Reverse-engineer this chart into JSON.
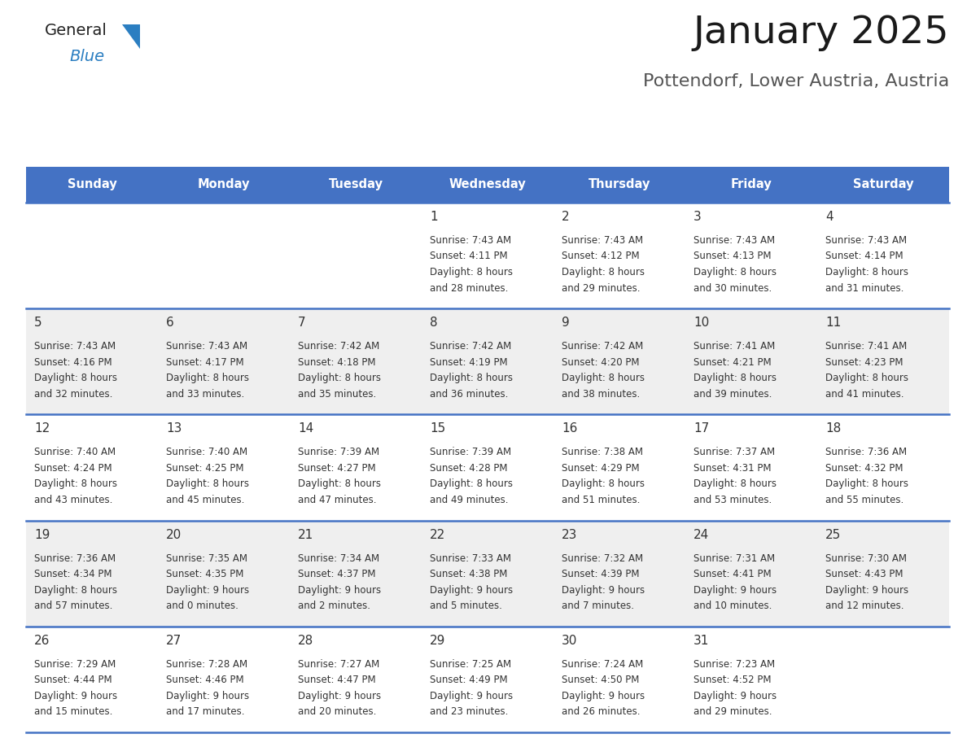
{
  "title": "January 2025",
  "subtitle": "Pottendorf, Lower Austria, Austria",
  "header_bg": "#4472C4",
  "header_text_color": "#FFFFFF",
  "day_names": [
    "Sunday",
    "Monday",
    "Tuesday",
    "Wednesday",
    "Thursday",
    "Friday",
    "Saturday"
  ],
  "cell_bg_even": "#FFFFFF",
  "cell_bg_odd": "#EFEFEF",
  "cell_text_color": "#333333",
  "divider_color": "#4472C4",
  "logo_general_color": "#222222",
  "logo_blue_color": "#2B7EC1",
  "days": [
    {
      "day": 1,
      "col": 3,
      "row": 0,
      "sunrise": "7:43 AM",
      "sunset": "4:11 PM",
      "daylight": "8 hours and 28 minutes."
    },
    {
      "day": 2,
      "col": 4,
      "row": 0,
      "sunrise": "7:43 AM",
      "sunset": "4:12 PM",
      "daylight": "8 hours and 29 minutes."
    },
    {
      "day": 3,
      "col": 5,
      "row": 0,
      "sunrise": "7:43 AM",
      "sunset": "4:13 PM",
      "daylight": "8 hours and 30 minutes."
    },
    {
      "day": 4,
      "col": 6,
      "row": 0,
      "sunrise": "7:43 AM",
      "sunset": "4:14 PM",
      "daylight": "8 hours and 31 minutes."
    },
    {
      "day": 5,
      "col": 0,
      "row": 1,
      "sunrise": "7:43 AM",
      "sunset": "4:16 PM",
      "daylight": "8 hours and 32 minutes."
    },
    {
      "day": 6,
      "col": 1,
      "row": 1,
      "sunrise": "7:43 AM",
      "sunset": "4:17 PM",
      "daylight": "8 hours and 33 minutes."
    },
    {
      "day": 7,
      "col": 2,
      "row": 1,
      "sunrise": "7:42 AM",
      "sunset": "4:18 PM",
      "daylight": "8 hours and 35 minutes."
    },
    {
      "day": 8,
      "col": 3,
      "row": 1,
      "sunrise": "7:42 AM",
      "sunset": "4:19 PM",
      "daylight": "8 hours and 36 minutes."
    },
    {
      "day": 9,
      "col": 4,
      "row": 1,
      "sunrise": "7:42 AM",
      "sunset": "4:20 PM",
      "daylight": "8 hours and 38 minutes."
    },
    {
      "day": 10,
      "col": 5,
      "row": 1,
      "sunrise": "7:41 AM",
      "sunset": "4:21 PM",
      "daylight": "8 hours and 39 minutes."
    },
    {
      "day": 11,
      "col": 6,
      "row": 1,
      "sunrise": "7:41 AM",
      "sunset": "4:23 PM",
      "daylight": "8 hours and 41 minutes."
    },
    {
      "day": 12,
      "col": 0,
      "row": 2,
      "sunrise": "7:40 AM",
      "sunset": "4:24 PM",
      "daylight": "8 hours and 43 minutes."
    },
    {
      "day": 13,
      "col": 1,
      "row": 2,
      "sunrise": "7:40 AM",
      "sunset": "4:25 PM",
      "daylight": "8 hours and 45 minutes."
    },
    {
      "day": 14,
      "col": 2,
      "row": 2,
      "sunrise": "7:39 AM",
      "sunset": "4:27 PM",
      "daylight": "8 hours and 47 minutes."
    },
    {
      "day": 15,
      "col": 3,
      "row": 2,
      "sunrise": "7:39 AM",
      "sunset": "4:28 PM",
      "daylight": "8 hours and 49 minutes."
    },
    {
      "day": 16,
      "col": 4,
      "row": 2,
      "sunrise": "7:38 AM",
      "sunset": "4:29 PM",
      "daylight": "8 hours and 51 minutes."
    },
    {
      "day": 17,
      "col": 5,
      "row": 2,
      "sunrise": "7:37 AM",
      "sunset": "4:31 PM",
      "daylight": "8 hours and 53 minutes."
    },
    {
      "day": 18,
      "col": 6,
      "row": 2,
      "sunrise": "7:36 AM",
      "sunset": "4:32 PM",
      "daylight": "8 hours and 55 minutes."
    },
    {
      "day": 19,
      "col": 0,
      "row": 3,
      "sunrise": "7:36 AM",
      "sunset": "4:34 PM",
      "daylight": "8 hours and 57 minutes."
    },
    {
      "day": 20,
      "col": 1,
      "row": 3,
      "sunrise": "7:35 AM",
      "sunset": "4:35 PM",
      "daylight": "9 hours and 0 minutes."
    },
    {
      "day": 21,
      "col": 2,
      "row": 3,
      "sunrise": "7:34 AM",
      "sunset": "4:37 PM",
      "daylight": "9 hours and 2 minutes."
    },
    {
      "day": 22,
      "col": 3,
      "row": 3,
      "sunrise": "7:33 AM",
      "sunset": "4:38 PM",
      "daylight": "9 hours and 5 minutes."
    },
    {
      "day": 23,
      "col": 4,
      "row": 3,
      "sunrise": "7:32 AM",
      "sunset": "4:39 PM",
      "daylight": "9 hours and 7 minutes."
    },
    {
      "day": 24,
      "col": 5,
      "row": 3,
      "sunrise": "7:31 AM",
      "sunset": "4:41 PM",
      "daylight": "9 hours and 10 minutes."
    },
    {
      "day": 25,
      "col": 6,
      "row": 3,
      "sunrise": "7:30 AM",
      "sunset": "4:43 PM",
      "daylight": "9 hours and 12 minutes."
    },
    {
      "day": 26,
      "col": 0,
      "row": 4,
      "sunrise": "7:29 AM",
      "sunset": "4:44 PM",
      "daylight": "9 hours and 15 minutes."
    },
    {
      "day": 27,
      "col": 1,
      "row": 4,
      "sunrise": "7:28 AM",
      "sunset": "4:46 PM",
      "daylight": "9 hours and 17 minutes."
    },
    {
      "day": 28,
      "col": 2,
      "row": 4,
      "sunrise": "7:27 AM",
      "sunset": "4:47 PM",
      "daylight": "9 hours and 20 minutes."
    },
    {
      "day": 29,
      "col": 3,
      "row": 4,
      "sunrise": "7:25 AM",
      "sunset": "4:49 PM",
      "daylight": "9 hours and 23 minutes."
    },
    {
      "day": 30,
      "col": 4,
      "row": 4,
      "sunrise": "7:24 AM",
      "sunset": "4:50 PM",
      "daylight": "9 hours and 26 minutes."
    },
    {
      "day": 31,
      "col": 5,
      "row": 4,
      "sunrise": "7:23 AM",
      "sunset": "4:52 PM",
      "daylight": "9 hours and 29 minutes."
    }
  ]
}
